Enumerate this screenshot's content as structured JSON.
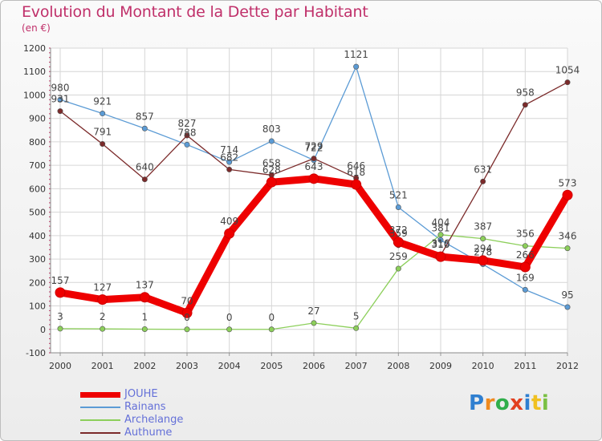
{
  "title": "Evolution du Montant de la Dette par Habitant",
  "subtitle": "(en €)",
  "logo": {
    "text": "Proxiti",
    "colors": [
      "#2f7fd0",
      "#f08a1e",
      "#2fae4a",
      "#e2401f",
      "#2f7fd0",
      "#f0c020",
      "#7ac043"
    ]
  },
  "chart_data": {
    "type": "line",
    "x": [
      "2000",
      "2001",
      "2002",
      "2003",
      "2004",
      "2005",
      "2006",
      "2007",
      "2008",
      "2009",
      "2010",
      "2011",
      "2012"
    ],
    "ylim": [
      -100,
      1200
    ],
    "yticks": [
      -100,
      0,
      100,
      200,
      300,
      400,
      500,
      600,
      700,
      800,
      900,
      1000,
      1100,
      1200
    ],
    "grid": true,
    "series": [
      {
        "name": "JOUHE",
        "color": "#ee0000",
        "values": [
          157,
          127,
          137,
          70,
          409,
          628,
          643,
          618,
          372,
          310,
          294,
          266,
          573
        ],
        "labels": [
          "157",
          "127",
          "137",
          "70",
          "409",
          "628",
          "643",
          "618",
          "372",
          "310",
          "294",
          "266",
          "573"
        ]
      },
      {
        "name": "Rainans",
        "color": "#5b9bd5",
        "values": [
          980,
          921,
          857,
          788,
          714,
          803,
          722,
          1121,
          521,
          381,
          278,
          169,
          95
        ],
        "labels": [
          "980",
          "921",
          "857",
          "788",
          "714",
          "803",
          "722",
          "1121",
          "521",
          "381",
          "278",
          "169",
          "95"
        ]
      },
      {
        "name": "Archelange",
        "color": "#8ccf5a",
        "values": [
          3,
          2,
          1,
          0,
          0,
          0,
          27,
          5,
          259,
          404,
          387,
          356,
          346
        ],
        "labels": [
          "3",
          "2",
          "1",
          "0",
          "0",
          "0",
          "27",
          "5",
          "259",
          "404",
          "387",
          "356",
          "346"
        ]
      },
      {
        "name": "Authume",
        "color": "#7b2a2a",
        "values": [
          931,
          791,
          640,
          827,
          682,
          658,
          729,
          646,
          359,
          316,
          631,
          958,
          1054
        ],
        "labels": [
          "931",
          "791",
          "640",
          "827",
          "682",
          "658",
          "729",
          "646",
          "359",
          "316",
          "631",
          "958",
          "1054"
        ]
      }
    ]
  }
}
